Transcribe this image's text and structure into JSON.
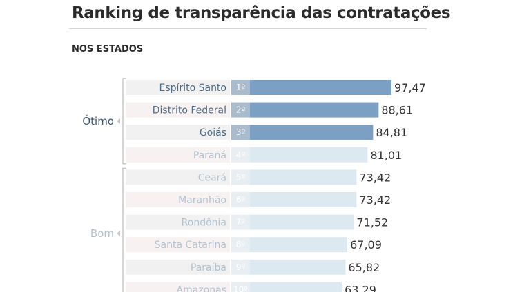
{
  "header": {
    "title": "Ranking de transparência das contratações",
    "subtitle": "NOS ESTADOS"
  },
  "colors": {
    "bar_top": "#7ca0c4",
    "bar_other": "#dde9f1",
    "label_top": "#4d6b86",
    "label_other": "#b3c2cf",
    "row_bg": "#f1f1f1",
    "row_bg_alt": "#f7f1f1",
    "rank_top": "#a9bccd",
    "rank_other": "#e8eef2",
    "group_otimo": "#3a5a78",
    "group_bom": "#b3c2cf",
    "bracket": "#c8c8c8"
  },
  "chart_data": {
    "type": "bar",
    "orientation": "horizontal",
    "title": "Ranking de transparência das contratações",
    "subtitle": "NOS ESTADOS",
    "xlim": [
      0,
      100
    ],
    "grid": false,
    "categories": [
      "Espírito Santo",
      "Distrito Federal",
      "Goiás",
      "Paraná",
      "Ceará",
      "Maranhão",
      "Rondônia",
      "Santa Catarina",
      "Paraíba",
      "Amazonas"
    ],
    "ranks": [
      "1º",
      "2º",
      "3º",
      "4º",
      "5º",
      "6º",
      "7º",
      "8º",
      "9º",
      "10º"
    ],
    "values": [
      97.47,
      88.61,
      84.81,
      81.01,
      73.42,
      73.42,
      71.52,
      67.09,
      65.82,
      63.29
    ],
    "value_labels": [
      "97,47",
      "88,61",
      "84,81",
      "81,01",
      "73,42",
      "73,42",
      "71,52",
      "67,09",
      "65,82",
      "63,29"
    ],
    "highlight_top": 3,
    "groups": [
      {
        "label": "Ótimo",
        "start": 0,
        "end": 3
      },
      {
        "label": "Bom",
        "start": 4,
        "end": 9
      }
    ]
  }
}
